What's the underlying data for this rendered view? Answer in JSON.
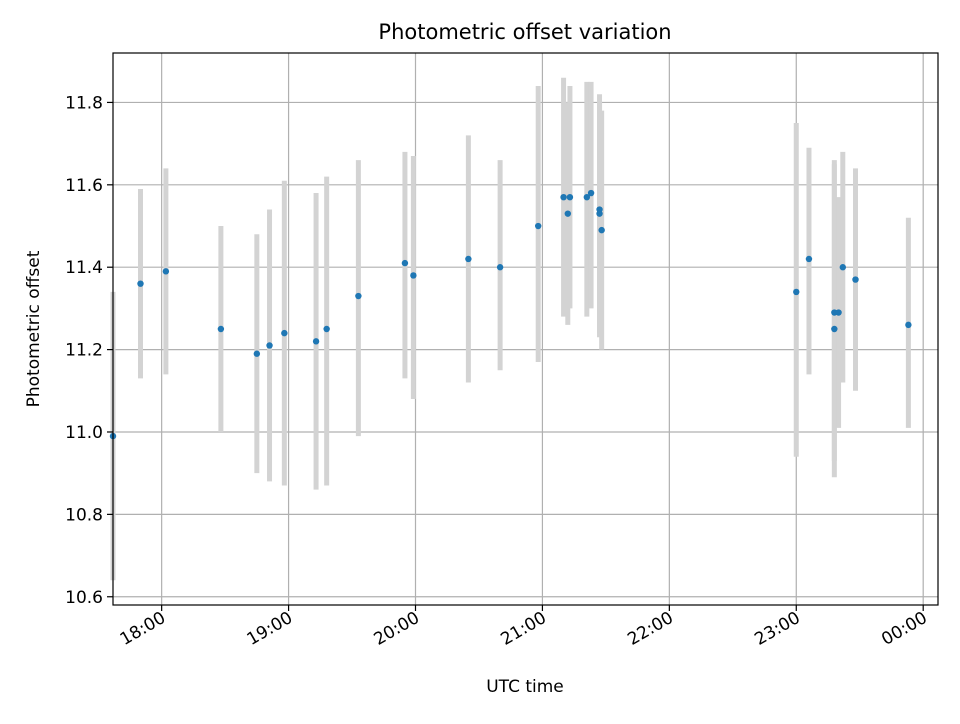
{
  "chart_data": {
    "type": "scatter",
    "title": "Photometric offset variation",
    "xlabel": "UTC time",
    "ylabel": "Photometric offset",
    "xlim": [
      "17:37",
      "00:07"
    ],
    "ylim": [
      10.58,
      11.92
    ],
    "xticks": [
      {
        "label": "18:00",
        "time": "18:00"
      },
      {
        "label": "19:00",
        "time": "19:00"
      },
      {
        "label": "20:00",
        "time": "20:00"
      },
      {
        "label": "21:00",
        "time": "21:00"
      },
      {
        "label": "22:00",
        "time": "22:00"
      },
      {
        "label": "23:00",
        "time": "23:00"
      },
      {
        "label": "00:00",
        "time": "00:00"
      }
    ],
    "yticks": [
      {
        "label": "10.6",
        "value": 10.6
      },
      {
        "label": "10.8",
        "value": 10.8
      },
      {
        "label": "11.0",
        "value": 11.0
      },
      {
        "label": "11.2",
        "value": 11.2
      },
      {
        "label": "11.4",
        "value": 11.4
      },
      {
        "label": "11.6",
        "value": 11.6
      },
      {
        "label": "11.8",
        "value": 11.8
      }
    ],
    "grid": true,
    "marker_color": "#1f77b4",
    "errorbar_color": "#d3d3d3",
    "points": [
      {
        "time": "17:37",
        "y": 10.99,
        "ylow": 10.64,
        "yhigh": 11.34
      },
      {
        "time": "17:50",
        "y": 11.36,
        "ylow": 11.13,
        "yhigh": 11.59
      },
      {
        "time": "18:02",
        "y": 11.39,
        "ylow": 11.14,
        "yhigh": 11.64
      },
      {
        "time": "18:28",
        "y": 11.25,
        "ylow": 11.0,
        "yhigh": 11.5
      },
      {
        "time": "18:45",
        "y": 11.19,
        "ylow": 10.9,
        "yhigh": 11.48
      },
      {
        "time": "18:51",
        "y": 11.21,
        "ylow": 10.88,
        "yhigh": 11.54
      },
      {
        "time": "18:58",
        "y": 11.24,
        "ylow": 10.87,
        "yhigh": 11.61
      },
      {
        "time": "19:13",
        "y": 11.22,
        "ylow": 10.86,
        "yhigh": 11.58
      },
      {
        "time": "19:18",
        "y": 11.25,
        "ylow": 10.87,
        "yhigh": 11.62
      },
      {
        "time": "19:33",
        "y": 11.33,
        "ylow": 10.99,
        "yhigh": 11.66
      },
      {
        "time": "19:55",
        "y": 11.41,
        "ylow": 11.13,
        "yhigh": 11.68
      },
      {
        "time": "19:59",
        "y": 11.38,
        "ylow": 11.08,
        "yhigh": 11.67
      },
      {
        "time": "20:25",
        "y": 11.42,
        "ylow": 11.12,
        "yhigh": 11.72
      },
      {
        "time": "20:40",
        "y": 11.4,
        "ylow": 11.15,
        "yhigh": 11.66
      },
      {
        "time": "20:58",
        "y": 11.5,
        "ylow": 11.17,
        "yhigh": 11.84
      },
      {
        "time": "21:10",
        "y": 11.57,
        "ylow": 11.28,
        "yhigh": 11.86
      },
      {
        "time": "21:12",
        "y": 11.53,
        "ylow": 11.26,
        "yhigh": 11.8
      },
      {
        "time": "21:13",
        "y": 11.57,
        "ylow": 11.3,
        "yhigh": 11.84
      },
      {
        "time": "21:21",
        "y": 11.57,
        "ylow": 11.28,
        "yhigh": 11.85
      },
      {
        "time": "21:23",
        "y": 11.58,
        "ylow": 11.3,
        "yhigh": 11.85
      },
      {
        "time": "21:27",
        "y": 11.54,
        "ylow": 11.24,
        "yhigh": 11.82
      },
      {
        "time": "21:27",
        "y": 11.53,
        "ylow": 11.23,
        "yhigh": 11.8
      },
      {
        "time": "21:28",
        "y": 11.49,
        "ylow": 11.2,
        "yhigh": 11.78
      },
      {
        "time": "23:00",
        "y": 11.34,
        "ylow": 10.94,
        "yhigh": 11.75
      },
      {
        "time": "23:06",
        "y": 11.42,
        "ylow": 11.14,
        "yhigh": 11.69
      },
      {
        "time": "23:18",
        "y": 11.25,
        "ylow": 10.89,
        "yhigh": 11.66
      },
      {
        "time": "23:18",
        "y": 11.29,
        "ylow": 10.93,
        "yhigh": 11.65
      },
      {
        "time": "23:20",
        "y": 11.29,
        "ylow": 11.01,
        "yhigh": 11.57
      },
      {
        "time": "23:22",
        "y": 11.4,
        "ylow": 11.12,
        "yhigh": 11.68
      },
      {
        "time": "23:28",
        "y": 11.37,
        "ylow": 11.1,
        "yhigh": 11.64
      },
      {
        "time": "23:53",
        "y": 11.26,
        "ylow": 11.01,
        "yhigh": 11.52
      }
    ]
  }
}
